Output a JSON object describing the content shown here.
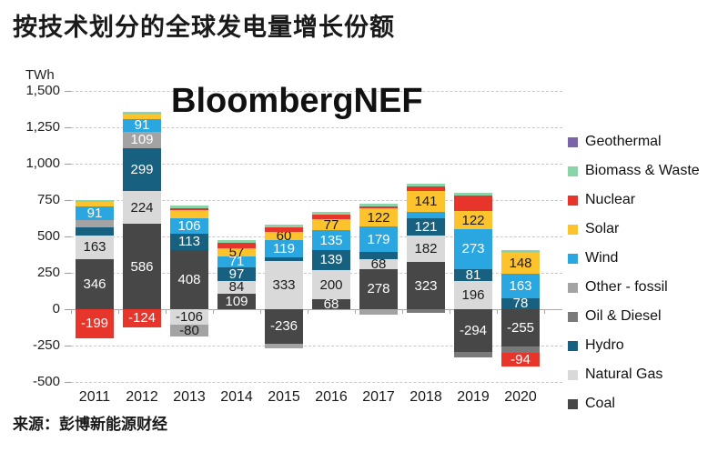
{
  "header": {
    "title": "按技术划分的全球发电量增长份额"
  },
  "footer": {
    "source": "来源：彭博新能源财经"
  },
  "chart_data": {
    "type": "bar",
    "subtype": "stacked-bar-with-negatives",
    "title": "按技术划分的全球发电量增长份额",
    "watermark": "BloombergNEF",
    "unit_label": "TWh",
    "ylim": [
      -500,
      1500
    ],
    "grid": "dashed-horizontal",
    "legend_position": "right",
    "yticks": [
      {
        "value": 1500,
        "label": "1,500"
      },
      {
        "value": 1250,
        "label": "1,250"
      },
      {
        "value": 1000,
        "label": "1,000"
      },
      {
        "value": 750,
        "label": "750"
      },
      {
        "value": 500,
        "label": "500"
      },
      {
        "value": 250,
        "label": "250"
      },
      {
        "value": 0,
        "label": "0"
      },
      {
        "value": -250,
        "label": "-250"
      },
      {
        "value": -500,
        "label": "-500"
      }
    ],
    "categories": [
      "2011",
      "2012",
      "2013",
      "2014",
      "2015",
      "2016",
      "2017",
      "2018",
      "2019",
      "2020"
    ],
    "technologies": {
      "geothermal": {
        "label": "Geothermal",
        "color": "#7c64a8",
        "label_color": "#ffffff"
      },
      "biomass": {
        "label": "Biomass & Waste",
        "color": "#8bd4a7",
        "label_color": "#1a1a1a"
      },
      "nuclear": {
        "label": "Nuclear",
        "color": "#e8352b",
        "label_color": "#ffffff"
      },
      "solar": {
        "label": "Solar",
        "color": "#fdc32d",
        "label_color": "#1a1a1a"
      },
      "wind": {
        "label": "Wind",
        "color": "#2aa7e1",
        "label_color": "#ffffff"
      },
      "other_fossil": {
        "label": "Other - fossil",
        "color": "#a3a3a3",
        "label_color": "#1a1a1a"
      },
      "oil_diesel": {
        "label": "Oil & Diesel",
        "color": "#7a7a7a",
        "label_color": "#ffffff"
      },
      "hydro": {
        "label": "Hydro",
        "color": "#18607f",
        "label_color": "#ffffff"
      },
      "natural_gas": {
        "label": "Natural Gas",
        "color": "#d9d9d9",
        "label_color": "#1a1a1a"
      },
      "coal": {
        "label": "Coal",
        "color": "#474747",
        "label_color": "#ffffff"
      }
    },
    "legend_order": [
      "geothermal",
      "biomass",
      "nuclear",
      "solar",
      "wind",
      "other_fossil",
      "oil_diesel",
      "hydro",
      "natural_gas",
      "coal"
    ],
    "stack_order_note": "segments listed bottom-to-top for positives, top-to-bottom for negatives; unlabeled values are estimates from pixel heights",
    "bars": [
      {
        "year": "2011",
        "segments": [
          {
            "tech": "coal",
            "value": 346,
            "label": "346"
          },
          {
            "tech": "natural_gas",
            "value": 163,
            "label": "163"
          },
          {
            "tech": "hydro",
            "value": 55
          },
          {
            "tech": "other_fossil",
            "value": 50
          },
          {
            "tech": "wind",
            "value": 91,
            "label": "91"
          },
          {
            "tech": "solar",
            "value": 30
          },
          {
            "tech": "biomass",
            "value": 18
          },
          {
            "tech": "nuclear",
            "value": -199,
            "label": "-199"
          }
        ]
      },
      {
        "year": "2012",
        "segments": [
          {
            "tech": "coal",
            "value": 586,
            "label": "586"
          },
          {
            "tech": "natural_gas",
            "value": 224,
            "label": "224"
          },
          {
            "tech": "hydro",
            "value": 299,
            "label": "299"
          },
          {
            "tech": "other_fossil",
            "value": 109,
            "label": "109",
            "label_color": "#ffffff"
          },
          {
            "tech": "wind",
            "value": 91,
            "label": "91"
          },
          {
            "tech": "solar",
            "value": 30
          },
          {
            "tech": "biomass",
            "value": 18
          },
          {
            "tech": "nuclear",
            "value": -124,
            "label": "-124"
          }
        ]
      },
      {
        "year": "2013",
        "segments": [
          {
            "tech": "coal",
            "value": 408,
            "label": "408"
          },
          {
            "tech": "hydro",
            "value": 113,
            "label": "113"
          },
          {
            "tech": "wind",
            "value": 106,
            "label": "106"
          },
          {
            "tech": "solar",
            "value": 52
          },
          {
            "tech": "nuclear",
            "value": 15
          },
          {
            "tech": "biomass",
            "value": 18
          },
          {
            "tech": "natural_gas",
            "value": -106,
            "label": "-106"
          },
          {
            "tech": "other_fossil",
            "value": -80,
            "label": "-80"
          }
        ]
      },
      {
        "year": "2014",
        "segments": [
          {
            "tech": "coal",
            "value": 109,
            "label": "109"
          },
          {
            "tech": "natural_gas",
            "value": 84,
            "label": "84"
          },
          {
            "tech": "hydro",
            "value": 97,
            "label": "97"
          },
          {
            "tech": "wind",
            "value": 71,
            "label": "71"
          },
          {
            "tech": "solar",
            "value": 57,
            "label": "57"
          },
          {
            "tech": "nuclear",
            "value": 38
          },
          {
            "tech": "biomass",
            "value": 18
          }
        ]
      },
      {
        "year": "2015",
        "segments": [
          {
            "tech": "natural_gas",
            "value": 333,
            "label": "333"
          },
          {
            "tech": "hydro",
            "value": 22
          },
          {
            "tech": "wind",
            "value": 119,
            "label": "119"
          },
          {
            "tech": "solar",
            "value": 60,
            "label": "60"
          },
          {
            "tech": "nuclear",
            "value": 30
          },
          {
            "tech": "biomass",
            "value": 15
          },
          {
            "tech": "coal",
            "value": -236,
            "label": "-236"
          },
          {
            "tech": "other_fossil",
            "value": -30
          }
        ]
      },
      {
        "year": "2016",
        "segments": [
          {
            "tech": "coal",
            "value": 68,
            "label": "68"
          },
          {
            "tech": "natural_gas",
            "value": 200,
            "label": "200"
          },
          {
            "tech": "hydro",
            "value": 139,
            "label": "139"
          },
          {
            "tech": "wind",
            "value": 135,
            "label": "135"
          },
          {
            "tech": "solar",
            "value": 77,
            "label": "77"
          },
          {
            "tech": "nuclear",
            "value": 33
          },
          {
            "tech": "biomass",
            "value": 16
          }
        ]
      },
      {
        "year": "2017",
        "segments": [
          {
            "tech": "coal",
            "value": 278,
            "label": "278"
          },
          {
            "tech": "natural_gas",
            "value": 68,
            "label": "68"
          },
          {
            "tech": "hydro",
            "value": 45
          },
          {
            "tech": "wind",
            "value": 179,
            "label": "179"
          },
          {
            "tech": "solar",
            "value": 122,
            "label": "122"
          },
          {
            "tech": "nuclear",
            "value": 15
          },
          {
            "tech": "biomass",
            "value": 15
          },
          {
            "tech": "other_fossil",
            "value": -35
          }
        ]
      },
      {
        "year": "2018",
        "segments": [
          {
            "tech": "coal",
            "value": 323,
            "label": "323"
          },
          {
            "tech": "natural_gas",
            "value": 182,
            "label": "182"
          },
          {
            "tech": "hydro",
            "value": 121,
            "label": "121"
          },
          {
            "tech": "wind",
            "value": 45
          },
          {
            "tech": "solar",
            "value": 141,
            "label": "141"
          },
          {
            "tech": "nuclear",
            "value": 30
          },
          {
            "tech": "biomass",
            "value": 20
          },
          {
            "tech": "oil_diesel",
            "value": -22
          }
        ]
      },
      {
        "year": "2019",
        "segments": [
          {
            "tech": "natural_gas",
            "value": 196,
            "label": "196"
          },
          {
            "tech": "hydro",
            "value": 81,
            "label": "81"
          },
          {
            "tech": "wind",
            "value": 273,
            "label": "273"
          },
          {
            "tech": "solar",
            "value": 122,
            "label": "122"
          },
          {
            "tech": "nuclear",
            "value": 110
          },
          {
            "tech": "biomass",
            "value": 15
          },
          {
            "tech": "coal",
            "value": -294,
            "label": "-294"
          },
          {
            "tech": "oil_diesel",
            "value": -40
          }
        ]
      },
      {
        "year": "2020",
        "segments": [
          {
            "tech": "hydro",
            "value": 78,
            "label": "78"
          },
          {
            "tech": "wind",
            "value": 163,
            "label": "163"
          },
          {
            "tech": "solar",
            "value": 148,
            "label": "148"
          },
          {
            "tech": "biomass",
            "value": 15
          },
          {
            "tech": "coal",
            "value": -255,
            "label": "-255"
          },
          {
            "tech": "oil_diesel",
            "value": -45
          },
          {
            "tech": "nuclear",
            "value": -94,
            "label": "-94"
          }
        ]
      }
    ]
  }
}
